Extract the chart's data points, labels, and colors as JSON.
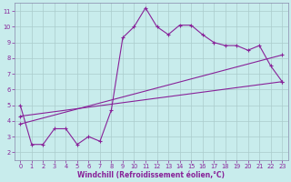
{
  "xlabel": "Windchill (Refroidissement éolien,°C)",
  "bg_color": "#c8ecec",
  "line_color": "#882299",
  "grid_color": "#aacccc",
  "spine_color": "#8888aa",
  "xlim": [
    -0.5,
    23.5
  ],
  "ylim": [
    1.5,
    11.5
  ],
  "xticks": [
    0,
    1,
    2,
    3,
    4,
    5,
    6,
    7,
    8,
    9,
    10,
    11,
    12,
    13,
    14,
    15,
    16,
    17,
    18,
    19,
    20,
    21,
    22,
    23
  ],
  "yticks": [
    2,
    3,
    4,
    5,
    6,
    7,
    8,
    9,
    10,
    11
  ],
  "line1_x": [
    0,
    1,
    2,
    3,
    4,
    5,
    6,
    7,
    8,
    9,
    10,
    11,
    12,
    13,
    14,
    15,
    16,
    17,
    18,
    19,
    20,
    21,
    22,
    23
  ],
  "line1_y": [
    5.0,
    2.5,
    2.5,
    3.5,
    3.5,
    2.5,
    3.0,
    2.7,
    4.7,
    9.3,
    10.0,
    11.2,
    10.0,
    9.5,
    10.1,
    10.1,
    9.5,
    9.0,
    8.8,
    8.8,
    8.5,
    8.8,
    7.5,
    6.5
  ],
  "line2_x": [
    0,
    23
  ],
  "line2_y": [
    3.8,
    8.2
  ],
  "line3_x": [
    0,
    23
  ],
  "line3_y": [
    4.3,
    6.5
  ],
  "markersize": 3,
  "linewidth": 0.8,
  "tick_fontsize": 4.8,
  "xlabel_fontsize": 5.5
}
